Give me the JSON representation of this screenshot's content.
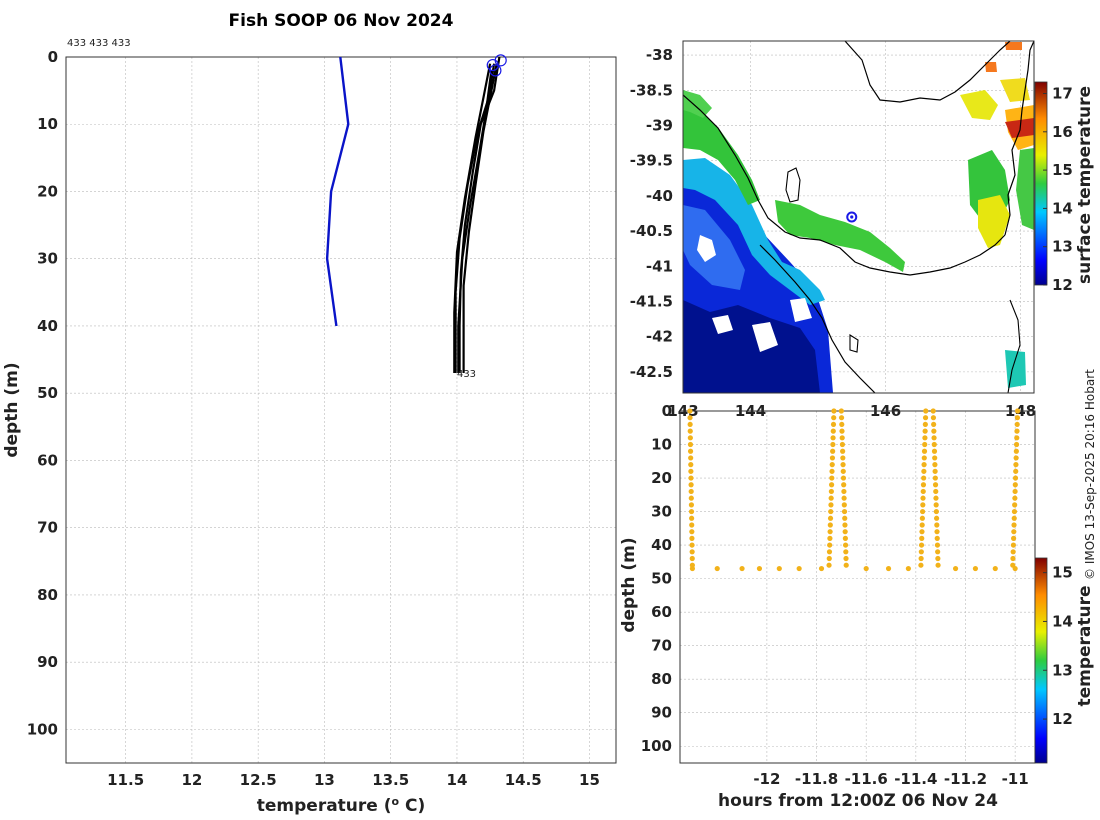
{
  "figure_title": "Fish SOOP 06 Nov 2024",
  "credit": "© IMOS 13-Sep-2025 20:16 Hobart",
  "chart_data": [
    {
      "type": "line",
      "name": "profile",
      "title": "Fish SOOP 06 Nov 2024",
      "xlabel": "temperature (° C)",
      "xlabel_main": "temperature (",
      "xlabel_sup": "o",
      "xlabel_end": " C)",
      "ylabel": "depth (m)",
      "xlim": [
        11.05,
        15.2
      ],
      "ylim": [
        105,
        0
      ],
      "xticks": [
        11.5,
        12,
        12.5,
        13,
        13.5,
        14,
        14.5,
        15
      ],
      "xtick_labels": [
        "11.5",
        "12",
        "12.5",
        "13",
        "13.5",
        "14",
        "14.5",
        "15"
      ],
      "yticks": [
        0,
        10,
        20,
        30,
        40,
        50,
        60,
        70,
        80,
        90,
        100
      ],
      "ytick_labels": [
        "0",
        "10",
        "20",
        "30",
        "40",
        "50",
        "60",
        "70",
        "80",
        "90",
        "100"
      ],
      "grid": true,
      "top_annotation": "433 433 433",
      "bottom_annotation": "433",
      "series": [
        {
          "name": "climatology",
          "color": "#0a14c8",
          "points": [
            [
              13.12,
              0
            ],
            [
              13.18,
              10
            ],
            [
              13.05,
              20
            ],
            [
              13.02,
              30
            ],
            [
              13.09,
              40
            ]
          ]
        },
        {
          "name": "profile-1",
          "color": "#000000",
          "points": [
            [
              14.32,
              0
            ],
            [
              14.28,
              5
            ],
            [
              14.18,
              10
            ],
            [
              14.12,
              17
            ],
            [
              14.06,
              25
            ],
            [
              14.03,
              32
            ],
            [
              14.02,
              40
            ],
            [
              14.02,
              47
            ]
          ]
        },
        {
          "name": "profile-2",
          "color": "#000000",
          "points": [
            [
              14.28,
              1
            ],
            [
              14.24,
              6
            ],
            [
              14.16,
              11
            ],
            [
              14.08,
              19
            ],
            [
              14.02,
              27
            ],
            [
              13.99,
              35
            ],
            [
              13.99,
              47
            ]
          ]
        },
        {
          "name": "profile-3",
          "color": "#000000",
          "points": [
            [
              14.3,
              1
            ],
            [
              14.25,
              6
            ],
            [
              14.2,
              11
            ],
            [
              14.14,
              19
            ],
            [
              14.09,
              26
            ],
            [
              14.05,
              34
            ],
            [
              14.05,
              47
            ]
          ]
        },
        {
          "name": "profile-4",
          "color": "#000000",
          "points": [
            [
              14.25,
              1
            ],
            [
              14.2,
              6
            ],
            [
              14.14,
              12
            ],
            [
              14.06,
              21
            ],
            [
              14.0,
              29
            ],
            [
              13.98,
              38
            ],
            [
              13.98,
              47
            ]
          ]
        },
        {
          "name": "profile-5",
          "color": "#000000",
          "points": [
            [
              14.26,
              2
            ],
            [
              14.22,
              8
            ],
            [
              14.17,
              14
            ],
            [
              14.1,
              22
            ],
            [
              14.04,
              30
            ],
            [
              14.01,
              40
            ],
            [
              14.01,
              47
            ]
          ]
        }
      ],
      "start_markers": [
        [
          14.27,
          1.2
        ],
        [
          14.33,
          0.5
        ],
        [
          14.29,
          2
        ]
      ]
    },
    {
      "type": "heatmap",
      "name": "sst-map",
      "xlim": [
        143,
        148.2
      ],
      "ylim": [
        -42.8,
        -37.8
      ],
      "xticks": [
        143,
        144,
        146,
        148
      ],
      "xtick_labels": [
        "143",
        "144",
        "146",
        "148"
      ],
      "yticks": [
        -38,
        -38.5,
        -39,
        -39.5,
        -40,
        -40.5,
        -41,
        -41.5,
        -42,
        -42.5
      ],
      "ytick_labels": [
        "-38",
        "-38.5",
        "-39",
        "-39.5",
        "-40",
        "-40.5",
        "-41",
        "-41.5",
        "-42",
        "-42.5"
      ],
      "colorbar_label": "surface temperature",
      "colorbar_range": [
        12,
        17.3
      ],
      "colorbar_ticks": [
        "12",
        "13",
        "14",
        "15",
        "16",
        "17"
      ],
      "marker": [
        145.5,
        -40.3
      ]
    },
    {
      "type": "scatter",
      "name": "time-depth",
      "xlabel": "hours from 12:00Z 06 Nov 24",
      "ylabel": "depth (m)",
      "xlim": [
        -12.35,
        -10.92
      ],
      "ylim": [
        105,
        0
      ],
      "xticks": [
        -12,
        -11.8,
        -11.6,
        -11.4,
        -11.2,
        -11
      ],
      "xtick_labels": [
        "-12",
        "-11.8",
        "-11.6",
        "-11.4",
        "-11.2",
        "-11"
      ],
      "yticks": [
        0,
        10,
        20,
        30,
        40,
        50,
        60,
        70,
        80,
        90,
        100
      ],
      "ytick_labels": [
        "0",
        "10",
        "20",
        "30",
        "40",
        "50",
        "60",
        "70",
        "80",
        "90",
        "100"
      ],
      "colorbar_label": "temperature",
      "colorbar_range": [
        11.1,
        15.3
      ],
      "colorbar_ticks": [
        "12",
        "13",
        "14",
        "15"
      ],
      "casts": [
        {
          "x_top": -12.31,
          "x_bottom": -12.3
        },
        {
          "x_top": -11.73,
          "x_bottom": -11.75
        },
        {
          "x_top": -11.7,
          "x_bottom": -11.68
        },
        {
          "x_top": -11.36,
          "x_bottom": -11.38
        },
        {
          "x_top": -11.33,
          "x_bottom": -11.31
        },
        {
          "x_top": -10.99,
          "x_bottom": -11.01
        }
      ],
      "bottom_points_x": [
        -12.3,
        -12.2,
        -12.1,
        -12.03,
        -11.95,
        -11.87,
        -11.78,
        -11.6,
        -11.51,
        -11.43,
        -11.24,
        -11.16,
        -11.08,
        -11.0
      ],
      "bottom_depth": 47,
      "point_color": "#f2b21a"
    }
  ]
}
